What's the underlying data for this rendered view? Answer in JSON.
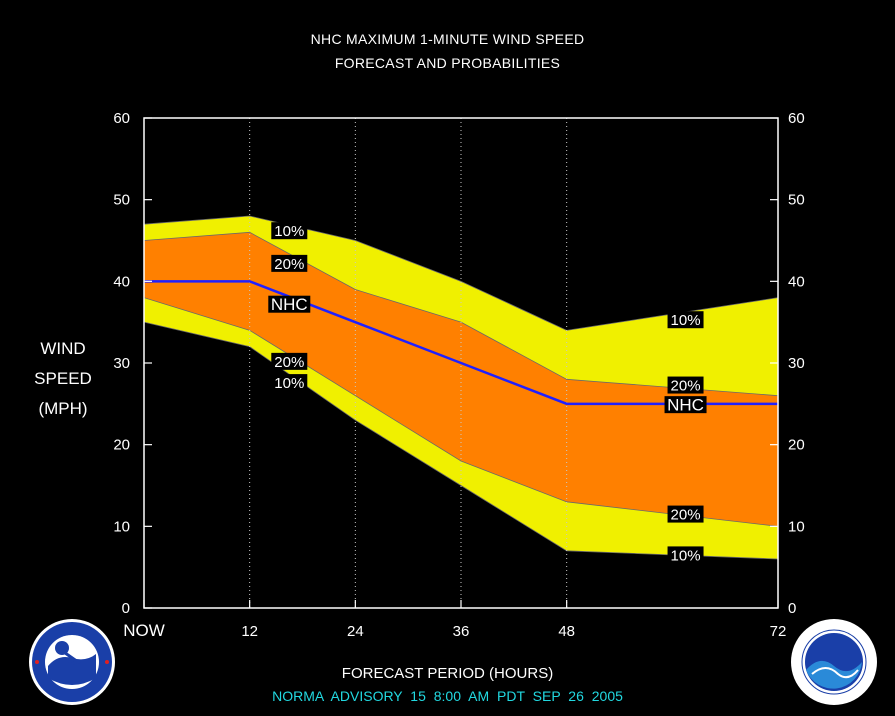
{
  "header": {
    "title_line1": "NHC MAXIMUM 1-MINUTE WIND SPEED",
    "title_line2": "FORECAST AND PROBABILITIES"
  },
  "axis": {
    "ylabel_lines": [
      "WIND",
      "SPEED",
      "(MPH)"
    ],
    "xlabel": "FORECAST PERIOD (HOURS)"
  },
  "footer": {
    "advisory": "NORMA   ADVISORY  15  8:00  AM  PDT  SEP  26  2005"
  },
  "logos": {
    "left": "national-weather-service-logo",
    "right": "noaa-logo"
  },
  "chart_data": {
    "type": "area",
    "title": "NHC MAXIMUM 1-MINUTE WIND SPEED FORECAST AND PROBABILITIES",
    "xlabel": "FORECAST PERIOD (HOURS)",
    "ylabel": "WIND SPEED (MPH)",
    "xlim": [
      0,
      72
    ],
    "ylim": [
      0,
      60
    ],
    "x_ticks": [
      {
        "value": 0,
        "label": "NOW"
      },
      {
        "value": 12,
        "label": "12"
      },
      {
        "value": 24,
        "label": "24"
      },
      {
        "value": 36,
        "label": "36"
      },
      {
        "value": 48,
        "label": "48"
      },
      {
        "value": 72,
        "label": "72"
      }
    ],
    "y_ticks": [
      0,
      10,
      20,
      30,
      40,
      50,
      60
    ],
    "grid": "vertical dotted lines at 12, 24, 36, 48",
    "x": [
      0,
      12,
      24,
      36,
      48,
      72
    ],
    "series": [
      {
        "name": "10%",
        "role": "upper",
        "values": [
          47,
          48,
          45,
          40,
          34,
          38
        ]
      },
      {
        "name": "20%",
        "role": "upper",
        "values": [
          45,
          46,
          39,
          35,
          28,
          26
        ]
      },
      {
        "name": "NHC",
        "role": "forecast",
        "values": [
          40,
          40,
          35,
          30,
          25,
          25
        ]
      },
      {
        "name": "20%",
        "role": "lower",
        "values": [
          38,
          34,
          26,
          18,
          13,
          10
        ]
      },
      {
        "name": "10%",
        "role": "lower",
        "values": [
          35,
          32,
          23,
          15,
          7,
          6
        ]
      }
    ],
    "labels": [
      {
        "text": "10%",
        "x": 16.5,
        "y": 46.2
      },
      {
        "text": "20%",
        "x": 16.5,
        "y": 42.2
      },
      {
        "text": "NHC",
        "x": 16.5,
        "y": 37.2
      },
      {
        "text": "20%",
        "x": 16.5,
        "y": 30.2
      },
      {
        "text": "10%",
        "x": 16.5,
        "y": 27.6
      },
      {
        "text": "10%",
        "x": 61.5,
        "y": 35.3
      },
      {
        "text": "20%",
        "x": 61.5,
        "y": 27.3
      },
      {
        "text": "NHC",
        "x": 61.5,
        "y": 24.9
      },
      {
        "text": "20%",
        "x": 61.5,
        "y": 11.5
      },
      {
        "text": "10%",
        "x": 61.5,
        "y": 6.5
      }
    ],
    "colors": {
      "outer_band": "#f0f000",
      "inner_band": "#ff8000",
      "forecast_line": "#2020ff",
      "frame": "#ffffff",
      "background": "#000000"
    }
  }
}
